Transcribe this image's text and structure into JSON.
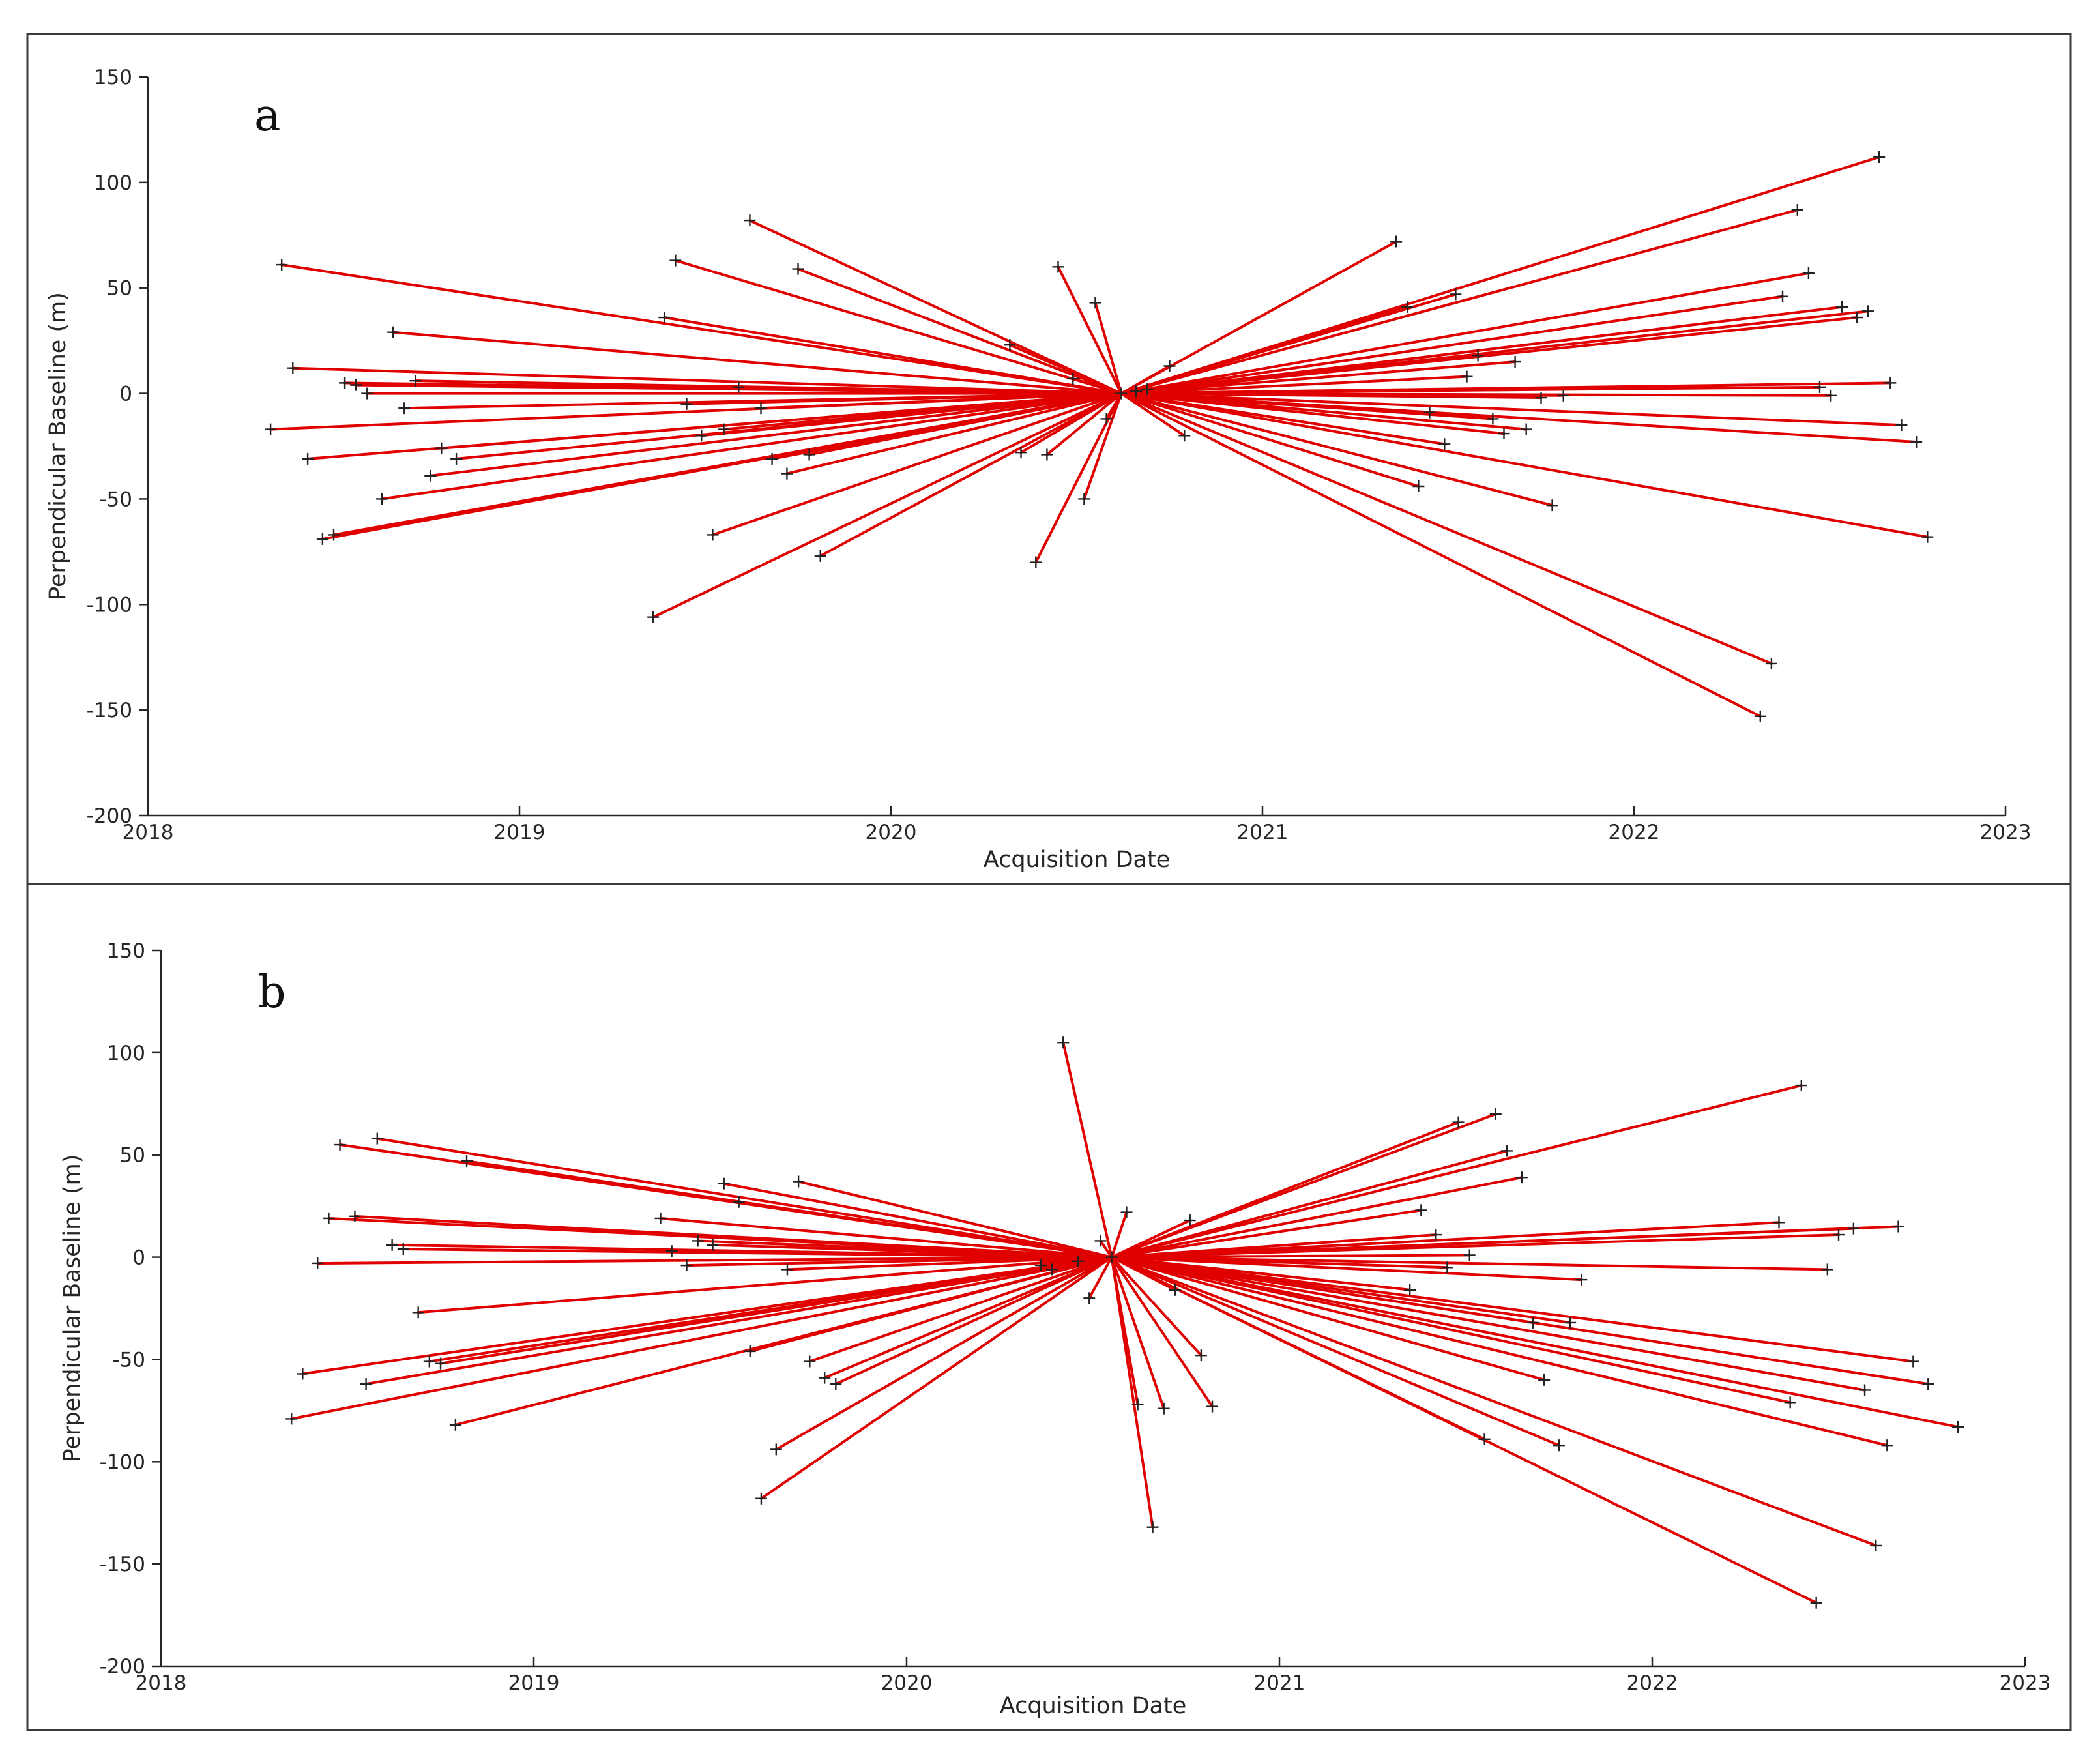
{
  "chart_data": [
    {
      "type": "scatter",
      "panel": "a",
      "xlabel": "Acquisition Date",
      "ylabel": "Perpendicular Baseline (m)",
      "xlim": [
        2018,
        2023
      ],
      "ylim": [
        -200,
        150
      ],
      "xticks": [
        2018,
        2019,
        2020,
        2021,
        2022,
        2023
      ],
      "yticks": [
        -200,
        -150,
        -100,
        -50,
        0,
        50,
        100,
        150
      ],
      "master": {
        "x": 2020.62,
        "y": 0
      },
      "points": [
        {
          "x": 2018.36,
          "y": 61
        },
        {
          "x": 2018.39,
          "y": 12
        },
        {
          "x": 2018.33,
          "y": -17
        },
        {
          "x": 2018.43,
          "y": -31
        },
        {
          "x": 2018.47,
          "y": -69
        },
        {
          "x": 2018.5,
          "y": -67
        },
        {
          "x": 2018.53,
          "y": 5
        },
        {
          "x": 2018.56,
          "y": 4
        },
        {
          "x": 2018.59,
          "y": 0
        },
        {
          "x": 2018.63,
          "y": -50
        },
        {
          "x": 2018.66,
          "y": 29
        },
        {
          "x": 2018.69,
          "y": -7
        },
        {
          "x": 2018.72,
          "y": 6
        },
        {
          "x": 2018.76,
          "y": -39
        },
        {
          "x": 2018.79,
          "y": -26
        },
        {
          "x": 2018.83,
          "y": -31
        },
        {
          "x": 2019.36,
          "y": -106
        },
        {
          "x": 2019.39,
          "y": 36
        },
        {
          "x": 2019.42,
          "y": 63
        },
        {
          "x": 2019.45,
          "y": -5
        },
        {
          "x": 2019.49,
          "y": -20
        },
        {
          "x": 2019.52,
          "y": -67
        },
        {
          "x": 2019.55,
          "y": -17
        },
        {
          "x": 2019.59,
          "y": 3
        },
        {
          "x": 2019.62,
          "y": 82
        },
        {
          "x": 2019.65,
          "y": -7
        },
        {
          "x": 2019.68,
          "y": -31
        },
        {
          "x": 2019.72,
          "y": -38
        },
        {
          "x": 2019.75,
          "y": 59
        },
        {
          "x": 2019.78,
          "y": -29
        },
        {
          "x": 2019.81,
          "y": -77
        },
        {
          "x": 2020.32,
          "y": 23
        },
        {
          "x": 2020.35,
          "y": -28
        },
        {
          "x": 2020.39,
          "y": -80
        },
        {
          "x": 2020.42,
          "y": -29
        },
        {
          "x": 2020.45,
          "y": 60
        },
        {
          "x": 2020.49,
          "y": 7
        },
        {
          "x": 2020.52,
          "y": -50
        },
        {
          "x": 2020.55,
          "y": 43
        },
        {
          "x": 2020.58,
          "y": -12
        },
        {
          "x": 2020.66,
          "y": 1
        },
        {
          "x": 2020.69,
          "y": 2
        },
        {
          "x": 2020.75,
          "y": 13
        },
        {
          "x": 2020.79,
          "y": -20
        },
        {
          "x": 2021.36,
          "y": 72
        },
        {
          "x": 2021.39,
          "y": 41
        },
        {
          "x": 2021.42,
          "y": -44
        },
        {
          "x": 2021.45,
          "y": -9
        },
        {
          "x": 2021.49,
          "y": -24
        },
        {
          "x": 2021.52,
          "y": 47
        },
        {
          "x": 2021.55,
          "y": 8
        },
        {
          "x": 2021.58,
          "y": 18
        },
        {
          "x": 2021.62,
          "y": -12
        },
        {
          "x": 2021.65,
          "y": -19
        },
        {
          "x": 2021.68,
          "y": 15
        },
        {
          "x": 2021.71,
          "y": -17
        },
        {
          "x": 2021.75,
          "y": -2
        },
        {
          "x": 2021.78,
          "y": -53
        },
        {
          "x": 2021.81,
          "y": -1
        },
        {
          "x": 2022.34,
          "y": -153
        },
        {
          "x": 2022.37,
          "y": -128
        },
        {
          "x": 2022.4,
          "y": 46
        },
        {
          "x": 2022.44,
          "y": 87
        },
        {
          "x": 2022.47,
          "y": 57
        },
        {
          "x": 2022.5,
          "y": 3
        },
        {
          "x": 2022.53,
          "y": -1
        },
        {
          "x": 2022.56,
          "y": 41
        },
        {
          "x": 2022.6,
          "y": 36
        },
        {
          "x": 2022.63,
          "y": 39
        },
        {
          "x": 2022.66,
          "y": 112
        },
        {
          "x": 2022.69,
          "y": 5
        },
        {
          "x": 2022.72,
          "y": -15
        },
        {
          "x": 2022.76,
          "y": -23
        },
        {
          "x": 2022.79,
          "y": -68
        }
      ]
    },
    {
      "type": "scatter",
      "panel": "b",
      "xlabel": "Acquisition Date",
      "ylabel": "Perpendicular Baseline (m)",
      "xlim": [
        2018,
        2023
      ],
      "ylim": [
        -200,
        150
      ],
      "xticks": [
        2018,
        2019,
        2020,
        2021,
        2022,
        2023
      ],
      "yticks": [
        -200,
        -150,
        -100,
        -50,
        0,
        50,
        100,
        150
      ],
      "master": {
        "x": 2020.55,
        "y": 0
      },
      "points": [
        {
          "x": 2018.35,
          "y": -79
        },
        {
          "x": 2018.38,
          "y": -57
        },
        {
          "x": 2018.42,
          "y": -3
        },
        {
          "x": 2018.45,
          "y": 19
        },
        {
          "x": 2018.48,
          "y": 55
        },
        {
          "x": 2018.52,
          "y": 20
        },
        {
          "x": 2018.55,
          "y": -62
        },
        {
          "x": 2018.58,
          "y": 58
        },
        {
          "x": 2018.62,
          "y": 6
        },
        {
          "x": 2018.65,
          "y": 4
        },
        {
          "x": 2018.69,
          "y": -27
        },
        {
          "x": 2018.72,
          "y": -51
        },
        {
          "x": 2018.75,
          "y": -52
        },
        {
          "x": 2018.79,
          "y": -82
        },
        {
          "x": 2018.82,
          "y": 47
        },
        {
          "x": 2019.34,
          "y": 19
        },
        {
          "x": 2019.37,
          "y": 3
        },
        {
          "x": 2019.41,
          "y": -4
        },
        {
          "x": 2019.44,
          "y": 8
        },
        {
          "x": 2019.48,
          "y": 6
        },
        {
          "x": 2019.51,
          "y": 36
        },
        {
          "x": 2019.55,
          "y": 27
        },
        {
          "x": 2019.58,
          "y": -46
        },
        {
          "x": 2019.61,
          "y": -118
        },
        {
          "x": 2019.65,
          "y": -94
        },
        {
          "x": 2019.68,
          "y": -6
        },
        {
          "x": 2019.71,
          "y": 37
        },
        {
          "x": 2019.74,
          "y": -51
        },
        {
          "x": 2019.78,
          "y": -59
        },
        {
          "x": 2019.81,
          "y": -62
        },
        {
          "x": 2020.36,
          "y": -4
        },
        {
          "x": 2020.39,
          "y": -6
        },
        {
          "x": 2020.42,
          "y": 105
        },
        {
          "x": 2020.46,
          "y": -2
        },
        {
          "x": 2020.49,
          "y": -20
        },
        {
          "x": 2020.52,
          "y": 8
        },
        {
          "x": 2020.59,
          "y": 22
        },
        {
          "x": 2020.62,
          "y": -72
        },
        {
          "x": 2020.66,
          "y": -132
        },
        {
          "x": 2020.69,
          "y": -74
        },
        {
          "x": 2020.72,
          "y": -16
        },
        {
          "x": 2020.76,
          "y": 18
        },
        {
          "x": 2020.79,
          "y": -48
        },
        {
          "x": 2020.82,
          "y": -73
        },
        {
          "x": 2021.35,
          "y": -16
        },
        {
          "x": 2021.38,
          "y": 23
        },
        {
          "x": 2021.42,
          "y": 11
        },
        {
          "x": 2021.45,
          "y": -5
        },
        {
          "x": 2021.48,
          "y": 66
        },
        {
          "x": 2021.51,
          "y": 1
        },
        {
          "x": 2021.55,
          "y": -89
        },
        {
          "x": 2021.58,
          "y": 70
        },
        {
          "x": 2021.61,
          "y": 52
        },
        {
          "x": 2021.65,
          "y": 39
        },
        {
          "x": 2021.68,
          "y": -32
        },
        {
          "x": 2021.71,
          "y": -60
        },
        {
          "x": 2021.75,
          "y": -92
        },
        {
          "x": 2021.78,
          "y": -32
        },
        {
          "x": 2021.81,
          "y": -11
        },
        {
          "x": 2022.34,
          "y": 17
        },
        {
          "x": 2022.37,
          "y": -71
        },
        {
          "x": 2022.4,
          "y": 84
        },
        {
          "x": 2022.44,
          "y": -169
        },
        {
          "x": 2022.47,
          "y": -6
        },
        {
          "x": 2022.5,
          "y": 11
        },
        {
          "x": 2022.54,
          "y": 14
        },
        {
          "x": 2022.57,
          "y": -65
        },
        {
          "x": 2022.6,
          "y": -141
        },
        {
          "x": 2022.63,
          "y": -92
        },
        {
          "x": 2022.66,
          "y": 15
        },
        {
          "x": 2022.7,
          "y": -51
        },
        {
          "x": 2022.74,
          "y": -62
        },
        {
          "x": 2022.82,
          "y": -83
        }
      ]
    }
  ]
}
